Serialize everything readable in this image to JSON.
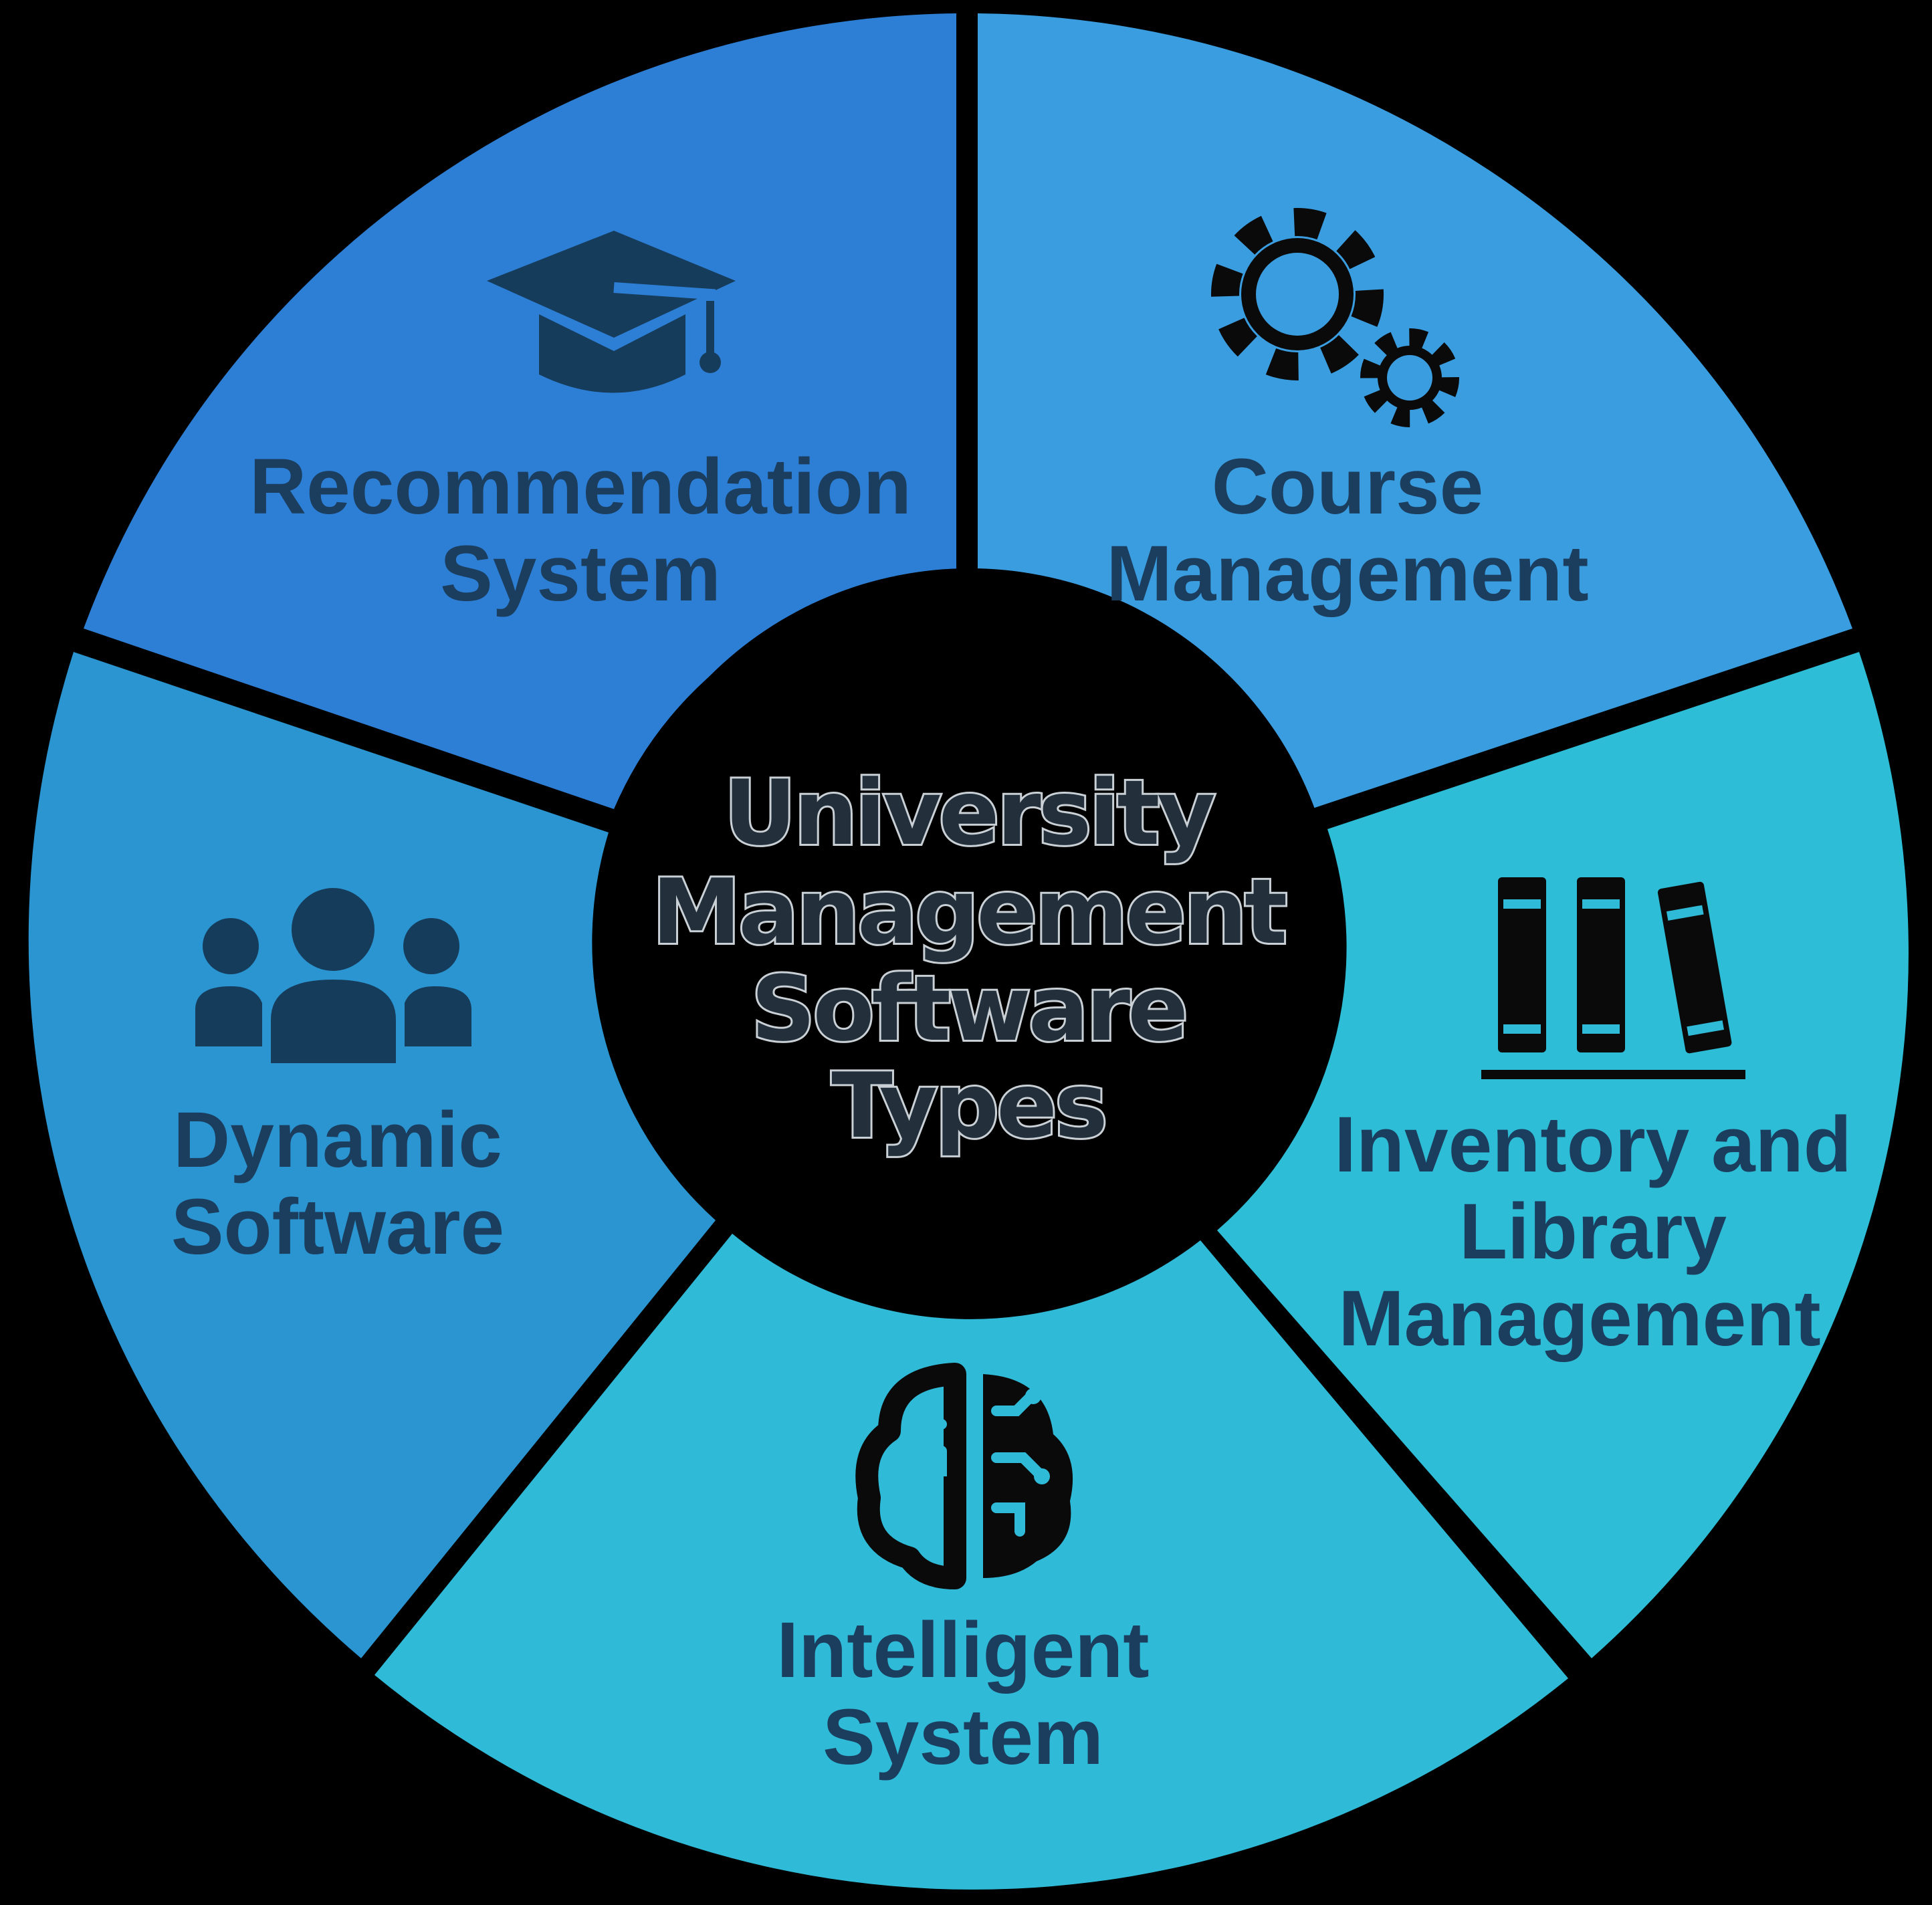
{
  "center": {
    "title_lines": [
      "University",
      "Management",
      "Software",
      "Types"
    ]
  },
  "segments": [
    {
      "name": "recommendation-system",
      "label_lines": [
        "Recommendation",
        "System"
      ],
      "color": "#2d7fd6",
      "icon": "graduation-cap-icon"
    },
    {
      "name": "course-management",
      "label_lines": [
        "Course",
        "Management"
      ],
      "color": "#3a9de0",
      "icon": "gears-icon"
    },
    {
      "name": "inventory-and-library-management",
      "label_lines": [
        "Inventory and",
        "Library",
        "Management"
      ],
      "color": "#2dbdd6",
      "icon": "books-icon"
    },
    {
      "name": "intelligent-system",
      "label_lines": [
        "Intelligent",
        "System"
      ],
      "color": "#2fbbd8",
      "icon": "brain-circuit-icon"
    },
    {
      "name": "dynamic-software",
      "label_lines": [
        "Dynamic",
        "Software"
      ],
      "color": "#2a95d0",
      "icon": "people-group-icon"
    }
  ],
  "colors": {
    "label_text": "#1b3d5e",
    "icon_dark": "#163c5c",
    "icon_black": "#0a0a0a",
    "icon_accent": "#2fbbd8",
    "center_fill": "#000000"
  }
}
